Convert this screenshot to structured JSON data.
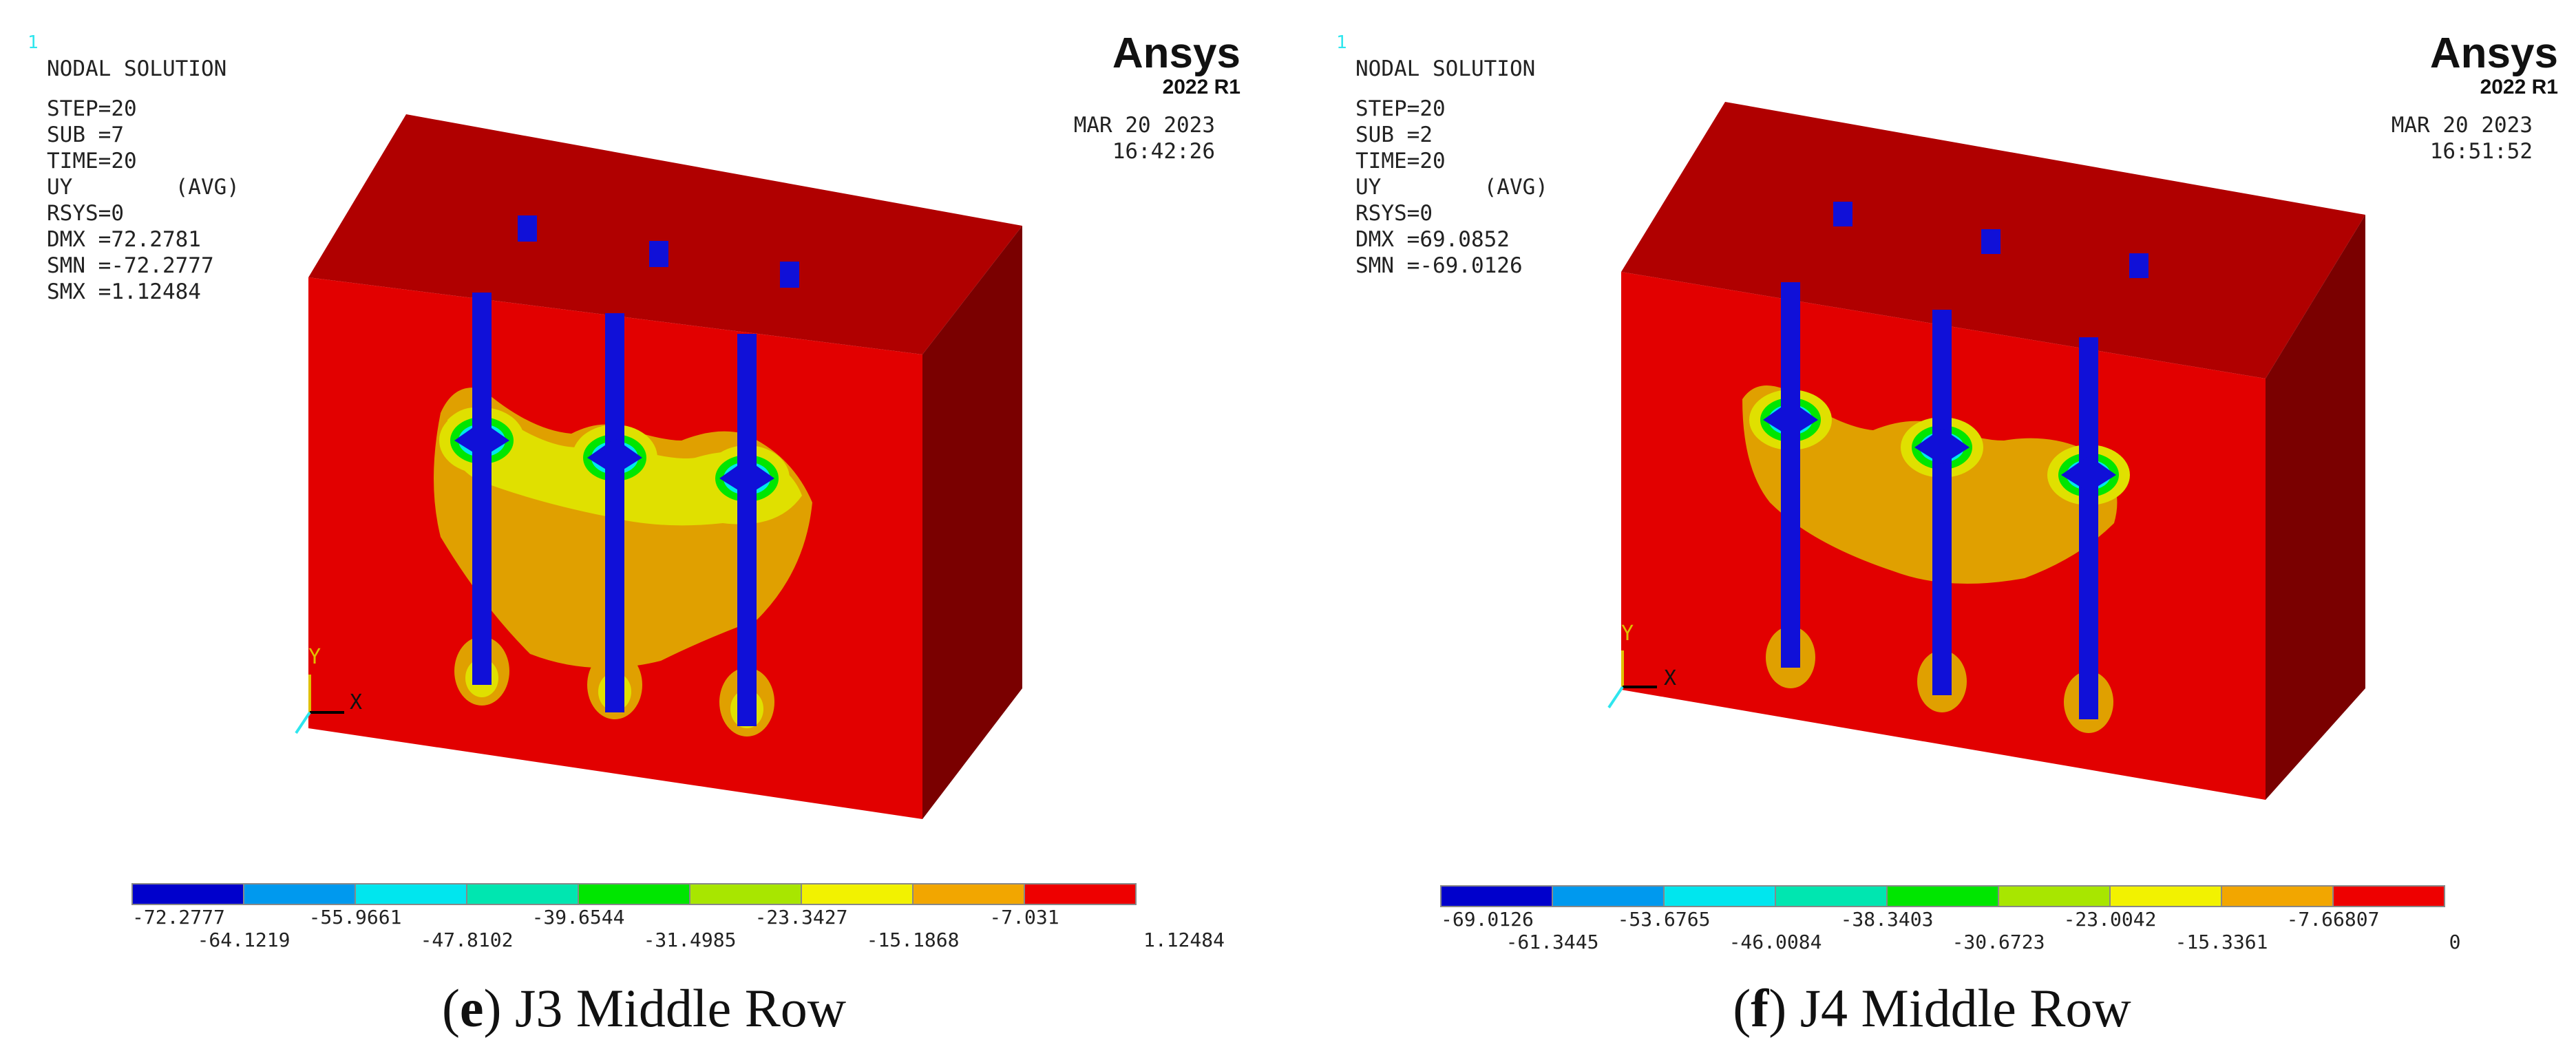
{
  "panels": [
    {
      "corner_number": "1",
      "title": "NODAL SOLUTION",
      "info_lines": [
        "STEP=20",
        "SUB =7",
        "TIME=20",
        "UY        (AVG)",
        "RSYS=0",
        "DMX =72.2781",
        "SMN =-72.2777",
        "SMX =1.12484"
      ],
      "brand": "Ansys",
      "version": "2022 R1",
      "date": "MAR 20 2023",
      "time": "16:42:26",
      "axis_y": "Y",
      "axis_x": "X",
      "legend_upper": [
        "-72.2777",
        "-55.9661",
        "-39.6544",
        "-23.3427",
        "-7.031"
      ],
      "legend_lower": [
        "-64.1219",
        "-47.8102",
        "-31.4985",
        "-15.1868",
        "1.12484"
      ],
      "caption_letter": "e",
      "caption_text": " J3 Middle Row"
    },
    {
      "corner_number": "1",
      "title": "NODAL SOLUTION",
      "info_lines": [
        "STEP=20",
        "SUB =2",
        "TIME=20",
        "UY        (AVG)",
        "RSYS=0",
        "DMX =69.0852",
        "SMN =-69.0126"
      ],
      "brand": "Ansys",
      "version": "2022 R1",
      "date": "MAR 20 2023",
      "time": "16:51:52",
      "axis_y": "Y",
      "axis_x": "X",
      "legend_upper": [
        "-69.0126",
        "-53.6765",
        "-38.3403",
        "-23.0042",
        "-7.66807"
      ],
      "legend_lower": [
        "-61.3445",
        "-46.0084",
        "-30.6723",
        "-15.3361",
        "0"
      ],
      "caption_letter": "f",
      "caption_text": " J4 Middle Row"
    }
  ],
  "colors": {
    "front_face": "#e20000",
    "top_face": "#b00000",
    "side_face": "#7a0000",
    "pile": "#1010d8",
    "band_orange": "#e0a000",
    "band_yellow": "#e0e000",
    "legend_scale": [
      "#0000cc",
      "#0099ee",
      "#00e6ee",
      "#00e6b0",
      "#00e600",
      "#a8e600",
      "#f2f200",
      "#f2a600",
      "#ee0000"
    ]
  }
}
